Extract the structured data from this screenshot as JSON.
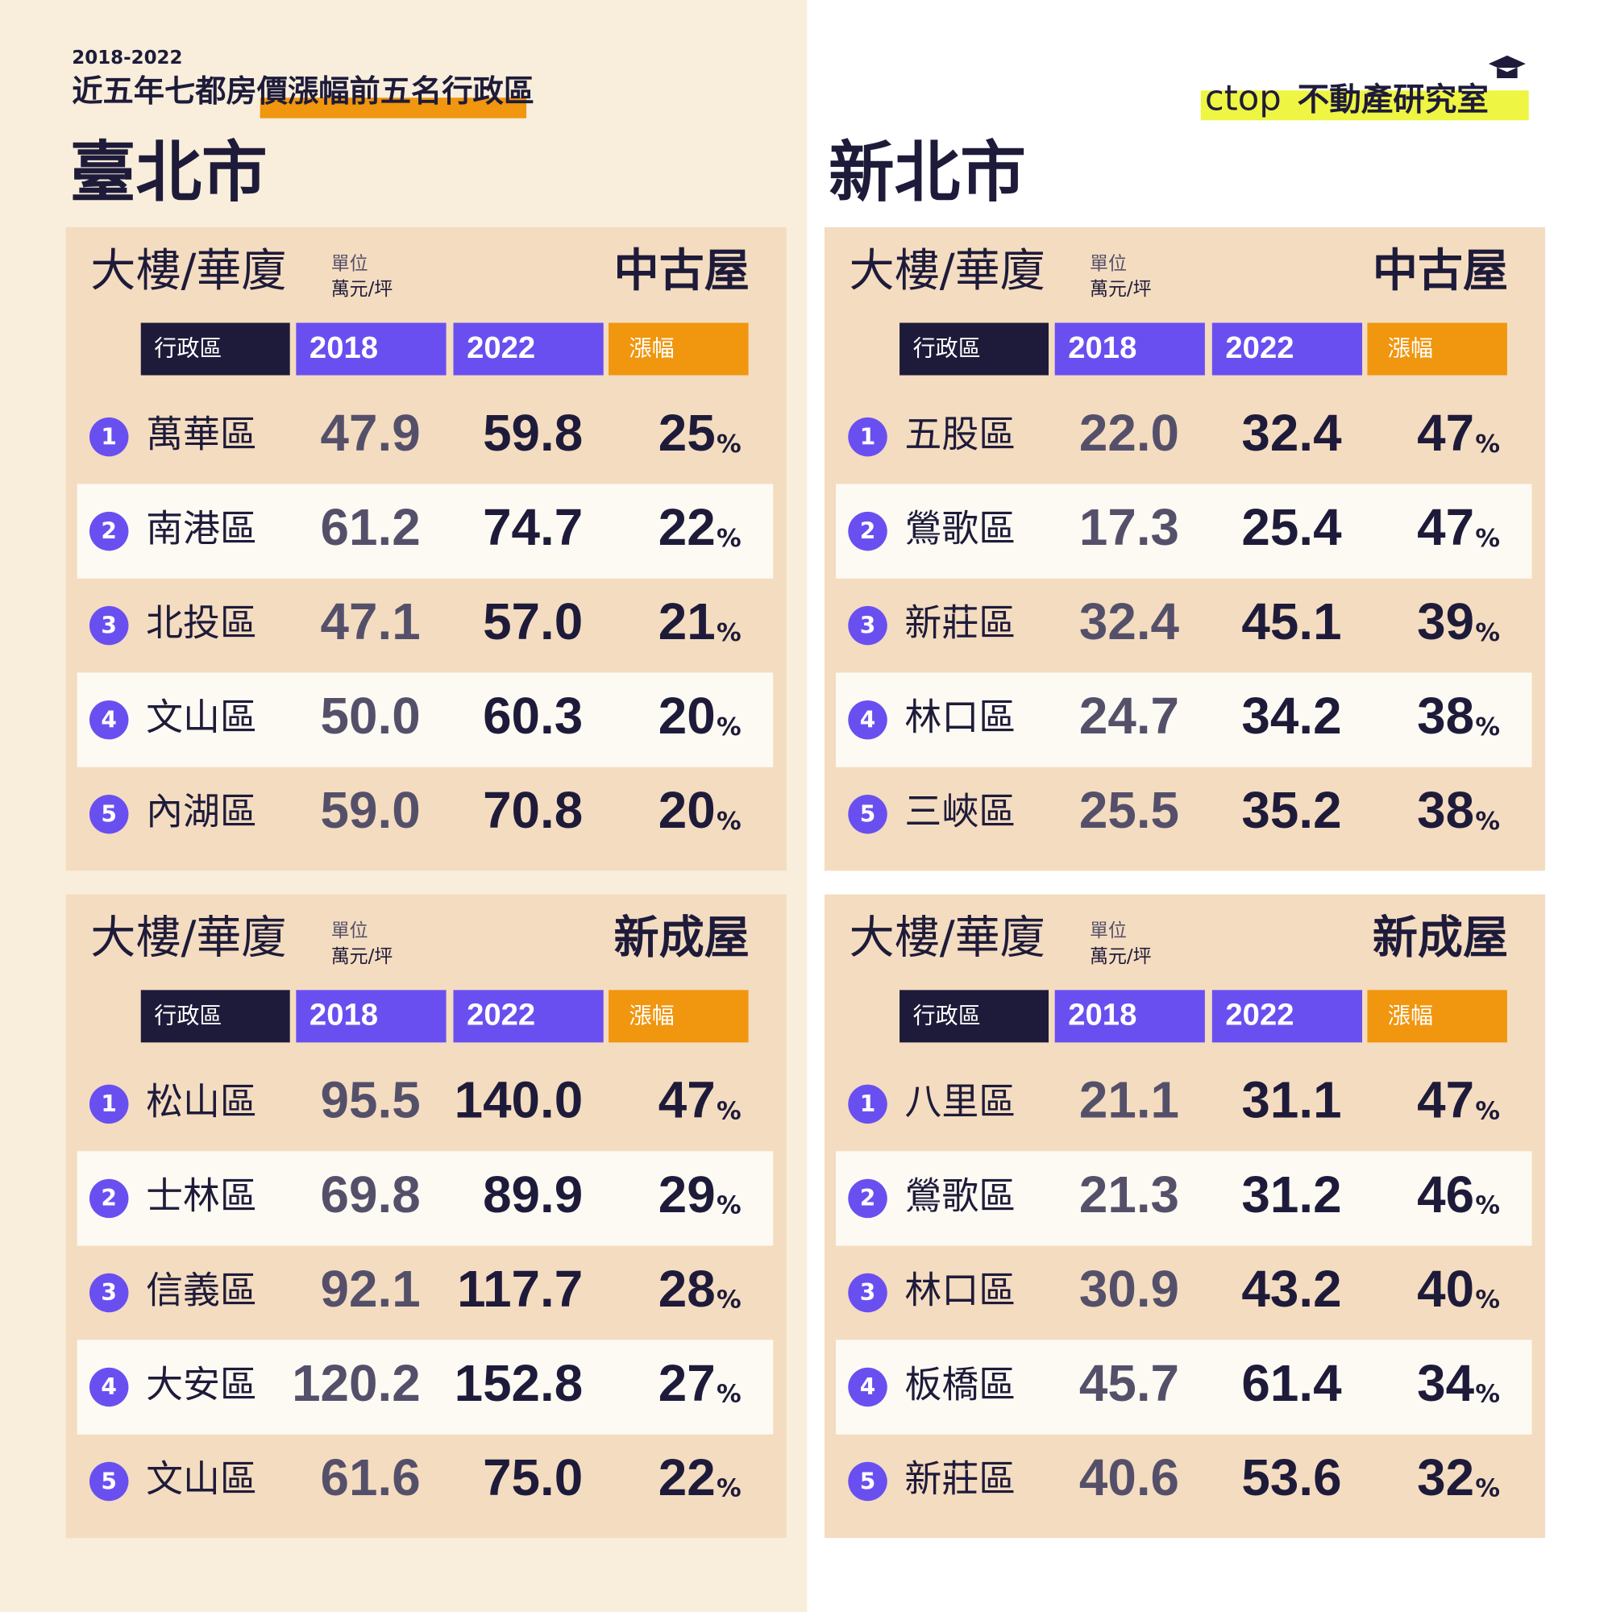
{
  "header": {
    "year_range": "2018-2022",
    "title_lead": "近五年七都",
    "title_highlight": "房價漲幅前五名",
    "title_tail": "行政區"
  },
  "logo": {
    "brand": "ctop",
    "name": "不動產研究室"
  },
  "symbols": {
    "percent": "%"
  },
  "cities": [
    {
      "name": "臺北市",
      "panels": [
        {
          "label": "大樓/華廈",
          "unit_label": "單位",
          "unit": "萬元/坪",
          "kind": "中古屋",
          "columns": [
            "行政區",
            "2018",
            "2022",
            "漲幅"
          ],
          "rows": [
            {
              "rank": 1,
              "district": "萬華區",
              "y2018": "47.9",
              "y2022": "59.8",
              "growth": "25"
            },
            {
              "rank": 2,
              "district": "南港區",
              "y2018": "61.2",
              "y2022": "74.7",
              "growth": "22"
            },
            {
              "rank": 3,
              "district": "北投區",
              "y2018": "47.1",
              "y2022": "57.0",
              "growth": "21"
            },
            {
              "rank": 4,
              "district": "文山區",
              "y2018": "50.0",
              "y2022": "60.3",
              "growth": "20"
            },
            {
              "rank": 5,
              "district": "內湖區",
              "y2018": "59.0",
              "y2022": "70.8",
              "growth": "20"
            }
          ]
        },
        {
          "label": "大樓/華廈",
          "unit_label": "單位",
          "unit": "萬元/坪",
          "kind": "新成屋",
          "columns": [
            "行政區",
            "2018",
            "2022",
            "漲幅"
          ],
          "rows": [
            {
              "rank": 1,
              "district": "松山區",
              "y2018": "95.5",
              "y2022": "140.0",
              "growth": "47"
            },
            {
              "rank": 2,
              "district": "士林區",
              "y2018": "69.8",
              "y2022": "89.9",
              "growth": "29"
            },
            {
              "rank": 3,
              "district": "信義區",
              "y2018": "92.1",
              "y2022": "117.7",
              "growth": "28"
            },
            {
              "rank": 4,
              "district": "大安區",
              "y2018": "120.2",
              "y2022": "152.8",
              "growth": "27"
            },
            {
              "rank": 5,
              "district": "文山區",
              "y2018": "61.6",
              "y2022": "75.0",
              "growth": "22"
            }
          ]
        }
      ]
    },
    {
      "name": "新北市",
      "panels": [
        {
          "label": "大樓/華廈",
          "unit_label": "單位",
          "unit": "萬元/坪",
          "kind": "中古屋",
          "columns": [
            "行政區",
            "2018",
            "2022",
            "漲幅"
          ],
          "rows": [
            {
              "rank": 1,
              "district": "五股區",
              "y2018": "22.0",
              "y2022": "32.4",
              "growth": "47"
            },
            {
              "rank": 2,
              "district": "鶯歌區",
              "y2018": "17.3",
              "y2022": "25.4",
              "growth": "47"
            },
            {
              "rank": 3,
              "district": "新莊區",
              "y2018": "32.4",
              "y2022": "45.1",
              "growth": "39"
            },
            {
              "rank": 4,
              "district": "林口區",
              "y2018": "24.7",
              "y2022": "34.2",
              "growth": "38"
            },
            {
              "rank": 5,
              "district": "三峽區",
              "y2018": "25.5",
              "y2022": "35.2",
              "growth": "38"
            }
          ]
        },
        {
          "label": "大樓/華廈",
          "unit_label": "單位",
          "unit": "萬元/坪",
          "kind": "新成屋",
          "columns": [
            "行政區",
            "2018",
            "2022",
            "漲幅"
          ],
          "rows": [
            {
              "rank": 1,
              "district": "八里區",
              "y2018": "21.1",
              "y2022": "31.1",
              "growth": "47"
            },
            {
              "rank": 2,
              "district": "鶯歌區",
              "y2018": "21.3",
              "y2022": "31.2",
              "growth": "46"
            },
            {
              "rank": 3,
              "district": "林口區",
              "y2018": "30.9",
              "y2022": "43.2",
              "growth": "40"
            },
            {
              "rank": 4,
              "district": "板橋區",
              "y2018": "45.7",
              "y2022": "61.4",
              "growth": "34"
            },
            {
              "rank": 5,
              "district": "新莊區",
              "y2018": "40.6",
              "y2022": "53.6",
              "growth": "32"
            }
          ]
        }
      ]
    }
  ]
}
